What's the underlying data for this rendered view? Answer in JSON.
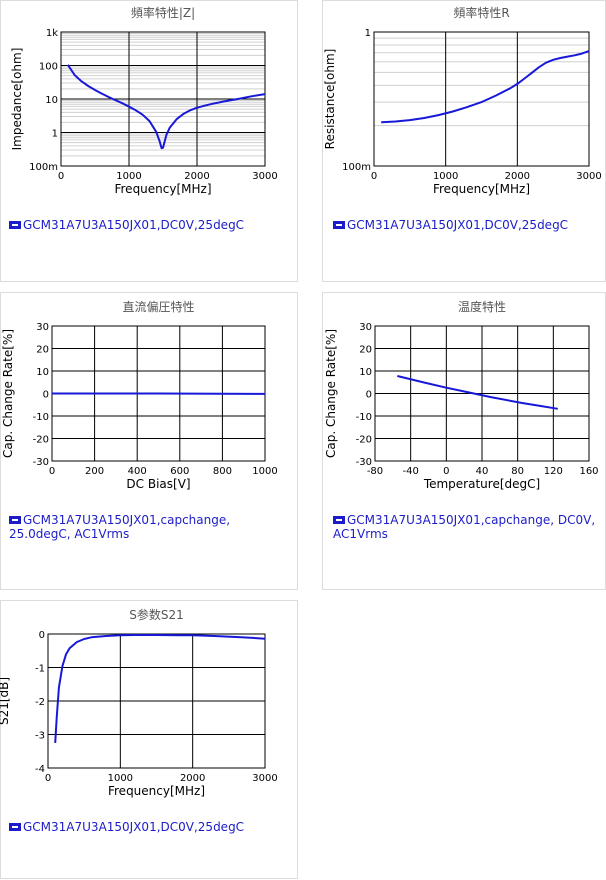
{
  "series_color": "#1818d8",
  "chart_data": [
    {
      "id": "c1",
      "type": "line",
      "title": "頻率特性|Z|",
      "xlabel": "Frequency[MHz]",
      "ylabel": "Impedance[ohm]",
      "xlim": [
        0,
        3000
      ],
      "ylim": [
        0.1,
        1000
      ],
      "yscale": "log",
      "xticks": [
        {
          "v": 0,
          "t": "0"
        },
        {
          "v": 1000,
          "t": "1000"
        },
        {
          "v": 2000,
          "t": "2000"
        },
        {
          "v": 3000,
          "t": "3000"
        }
      ],
      "yticks": [
        {
          "v": 1000,
          "t": "1k"
        },
        {
          "v": 100,
          "t": "100"
        },
        {
          "v": 10,
          "t": "10"
        },
        {
          "v": 1,
          "t": "1"
        },
        {
          "v": 0.1,
          "t": "100m"
        }
      ],
      "legend": [
        "GCM31A7U3A150JX01,DC0V,25degC"
      ],
      "series": [
        {
          "x": [
            100,
            200,
            300,
            400,
            500,
            600,
            700,
            800,
            900,
            1000,
            1100,
            1200,
            1300,
            1400,
            1450,
            1480,
            1500,
            1550,
            1600,
            1700,
            1800,
            1900,
            2000,
            2200,
            2400,
            2600,
            2800,
            3000
          ],
          "y": [
            105,
            52,
            34,
            24.5,
            18.5,
            14.5,
            11.5,
            9.3,
            7.5,
            5.9,
            4.6,
            3.4,
            2.2,
            1.05,
            0.55,
            0.34,
            0.35,
            0.85,
            1.4,
            2.5,
            3.6,
            4.6,
            5.5,
            7,
            8.5,
            10,
            12,
            14
          ]
        }
      ]
    },
    {
      "id": "c2",
      "type": "line",
      "title": "頻率特性R",
      "xlabel": "Frequency[MHz]",
      "ylabel": "Resistance[ohm]",
      "xlim": [
        0,
        3000
      ],
      "ylim": [
        0.1,
        1
      ],
      "yscale": "log",
      "xticks": [
        {
          "v": 0,
          "t": "0"
        },
        {
          "v": 1000,
          "t": "1000"
        },
        {
          "v": 2000,
          "t": "2000"
        },
        {
          "v": 3000,
          "t": "3000"
        }
      ],
      "yticks": [
        {
          "v": 1,
          "t": "1"
        },
        {
          "v": 0.1,
          "t": "100m"
        }
      ],
      "legend": [
        "GCM31A7U3A150JX01,DC0V,25degC"
      ],
      "series": [
        {
          "x": [
            100,
            300,
            500,
            700,
            900,
            1100,
            1300,
            1500,
            1700,
            1900,
            2000,
            2100,
            2200,
            2300,
            2400,
            2500,
            2600,
            2700,
            2800,
            2900,
            3000
          ],
          "y": [
            0.212,
            0.215,
            0.22,
            0.228,
            0.24,
            0.255,
            0.275,
            0.3,
            0.335,
            0.38,
            0.41,
            0.45,
            0.495,
            0.545,
            0.59,
            0.62,
            0.64,
            0.655,
            0.67,
            0.69,
            0.72
          ]
        }
      ]
    },
    {
      "id": "c3",
      "type": "line",
      "title": "直流偏圧特性",
      "xlabel": "DC Bias[V]",
      "ylabel": "Cap. Change Rate[%]",
      "xlim": [
        0,
        1000
      ],
      "ylim": [
        -30,
        30
      ],
      "xticks": [
        {
          "v": 0,
          "t": "0"
        },
        {
          "v": 200,
          "t": "200"
        },
        {
          "v": 400,
          "t": "400"
        },
        {
          "v": 600,
          "t": "600"
        },
        {
          "v": 800,
          "t": "800"
        },
        {
          "v": 1000,
          "t": "1000"
        }
      ],
      "yticks": [
        {
          "v": 30,
          "t": "30"
        },
        {
          "v": 20,
          "t": "20"
        },
        {
          "v": 10,
          "t": "10"
        },
        {
          "v": 0,
          "t": "0"
        },
        {
          "v": -10,
          "t": "-10"
        },
        {
          "v": -20,
          "t": "-20"
        },
        {
          "v": -30,
          "t": "-30"
        }
      ],
      "legend": [
        "GCM31A7U3A150JX01,capchange,",
        "25.0degC, AC1Vrms"
      ],
      "series": [
        {
          "x": [
            0,
            500,
            1000
          ],
          "y": [
            0,
            0,
            -0.2
          ]
        }
      ]
    },
    {
      "id": "c4",
      "type": "line",
      "title": "温度特性",
      "xlabel": "Temperature[degC]",
      "ylabel": "Cap. Change Rate[%]",
      "xlim": [
        -80,
        160
      ],
      "ylim": [
        -30,
        30
      ],
      "xticks": [
        {
          "v": -80,
          "t": "-80"
        },
        {
          "v": -40,
          "t": "-40"
        },
        {
          "v": 0,
          "t": "0"
        },
        {
          "v": 40,
          "t": "40"
        },
        {
          "v": 80,
          "t": "80"
        },
        {
          "v": 120,
          "t": "120"
        },
        {
          "v": 160,
          "t": "160"
        }
      ],
      "yticks": [
        {
          "v": 30,
          "t": "30"
        },
        {
          "v": 20,
          "t": "20"
        },
        {
          "v": 10,
          "t": "10"
        },
        {
          "v": 0,
          "t": "0"
        },
        {
          "v": -10,
          "t": "-10"
        },
        {
          "v": -20,
          "t": "-20"
        },
        {
          "v": -30,
          "t": "-30"
        }
      ],
      "legend": [
        "GCM31A7U3A150JX01,capchange, DC0V,",
        "AC1Vrms"
      ],
      "series": [
        {
          "x": [
            -55,
            -25,
            0,
            25,
            50,
            85,
            105,
            125
          ],
          "y": [
            7.8,
            4.9,
            2.6,
            0.5,
            -1.6,
            -4.2,
            -5.5,
            -6.8
          ]
        }
      ]
    },
    {
      "id": "c5",
      "type": "line",
      "title": "S参数S21",
      "xlabel": "Frequency[MHz]",
      "ylabel": "S21[dB]",
      "xlim": [
        0,
        3000
      ],
      "ylim": [
        -4,
        0
      ],
      "xticks": [
        {
          "v": 0,
          "t": "0"
        },
        {
          "v": 1000,
          "t": "1000"
        },
        {
          "v": 2000,
          "t": "2000"
        },
        {
          "v": 3000,
          "t": "3000"
        }
      ],
      "yticks": [
        {
          "v": 0,
          "t": "0"
        },
        {
          "v": -1,
          "t": "-1"
        },
        {
          "v": -2,
          "t": "-2"
        },
        {
          "v": -3,
          "t": "-3"
        },
        {
          "v": -4,
          "t": "-4"
        }
      ],
      "legend": [
        "GCM31A7U3A150JX01,DC0V,25degC"
      ],
      "series": [
        {
          "x": [
            100,
            120,
            150,
            200,
            250,
            300,
            400,
            500,
            600,
            800,
            1000,
            1200,
            1500,
            1800,
            2000,
            2300,
            2600,
            2800,
            3000
          ],
          "y": [
            -3.25,
            -2.5,
            -1.6,
            -0.95,
            -0.6,
            -0.42,
            -0.24,
            -0.15,
            -0.1,
            -0.06,
            -0.04,
            -0.03,
            -0.03,
            -0.035,
            -0.04,
            -0.06,
            -0.09,
            -0.11,
            -0.14
          ]
        }
      ]
    }
  ]
}
